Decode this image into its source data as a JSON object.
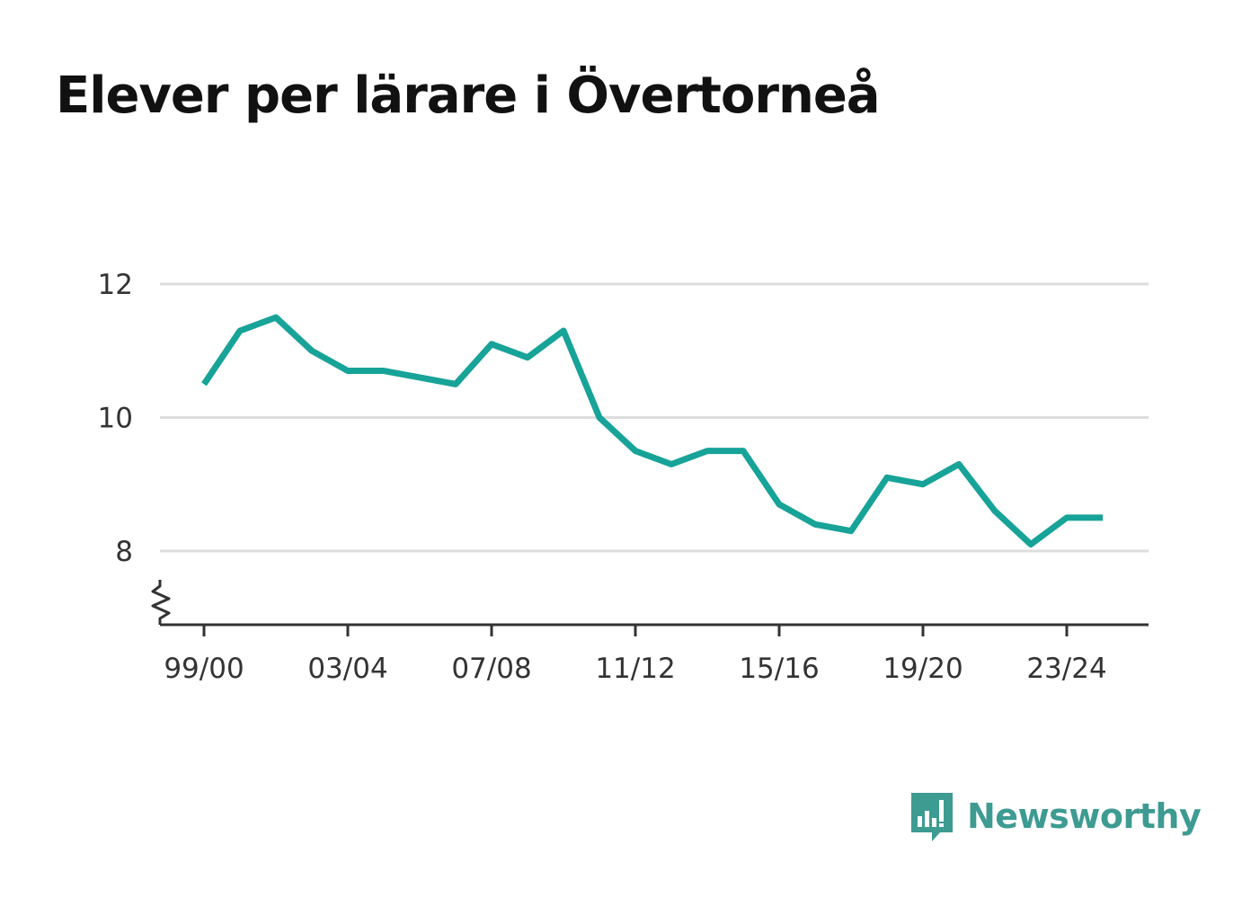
{
  "title": "Elever per lärare i Övertorneå",
  "brand": {
    "name": "Newsworthy",
    "icon": "newsworthy-logo-icon"
  },
  "colors": {
    "line": "#17a398",
    "grid": "#dddddd",
    "axis": "#333333",
    "brand": "#3d9b92"
  },
  "chart_data": {
    "type": "line",
    "title": "Elever per lärare i Övertorneå",
    "xlabel": "",
    "ylabel": "",
    "y_ticks": [
      8,
      10,
      12
    ],
    "ylim": [
      7,
      12
    ],
    "y_axis_break": true,
    "grid": true,
    "x_tick_labels": [
      "99/00",
      "03/04",
      "07/08",
      "11/12",
      "15/16",
      "19/20",
      "23/24"
    ],
    "x": [
      "99/00",
      "00/01",
      "01/02",
      "02/03",
      "03/04",
      "04/05",
      "05/06",
      "06/07",
      "07/08",
      "08/09",
      "09/10",
      "10/11",
      "11/12",
      "12/13",
      "13/14",
      "14/15",
      "15/16",
      "16/17",
      "17/18",
      "18/19",
      "19/20",
      "20/21",
      "21/22",
      "22/23",
      "23/24",
      "24/25"
    ],
    "series": [
      {
        "values": [
          10.5,
          11.3,
          11.5,
          11.0,
          10.7,
          10.7,
          10.6,
          10.5,
          11.1,
          10.9,
          11.3,
          10.0,
          9.5,
          9.3,
          9.5,
          9.5,
          8.7,
          8.4,
          8.3,
          9.1,
          9.0,
          9.3,
          8.6,
          8.1,
          8.5,
          8.5
        ]
      }
    ]
  }
}
